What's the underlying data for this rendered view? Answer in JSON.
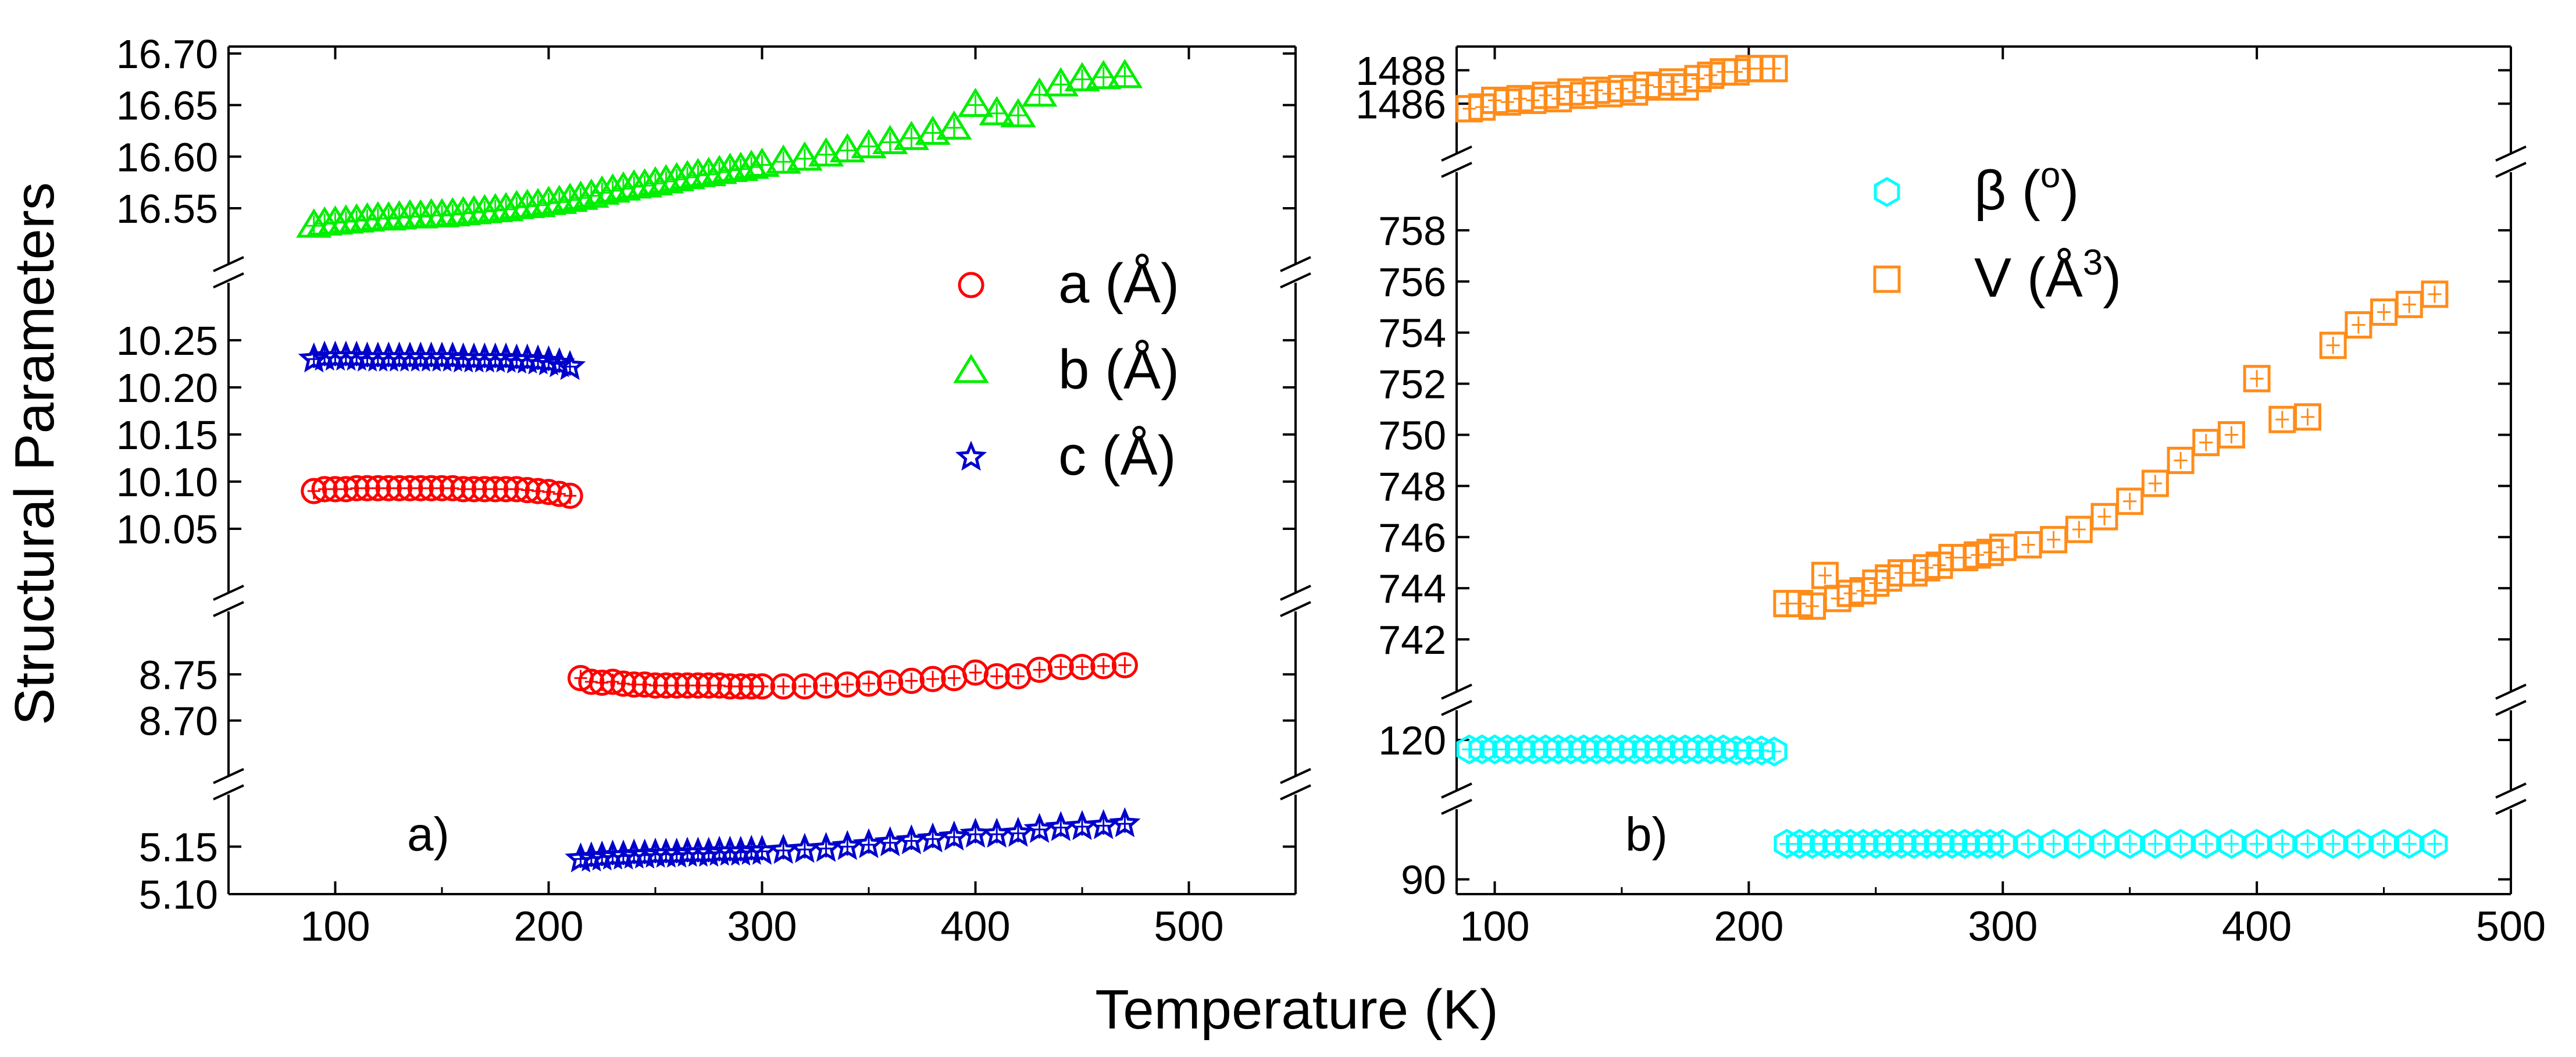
{
  "ylabel": "Structural Parameters",
  "xlabel": "Temperature (K)",
  "chart_data": [
    {
      "type": "scatter",
      "panel_label": "a)",
      "x_ticks": [
        "100",
        "200",
        "300",
        "400",
        "500"
      ],
      "xlim": [
        50,
        550
      ],
      "segments": [
        {
          "ylim": [
            16.515,
            16.7
          ],
          "ticks": [
            "16.55",
            "16.60",
            "16.65",
            "16.70"
          ]
        },
        {
          "ylim": [
            10.0,
            10.29
          ],
          "ticks": [
            "10.05",
            "10.10",
            "10.15",
            "10.20",
            "10.25"
          ]
        },
        {
          "ylim": [
            8.655,
            8.8
          ],
          "ticks": [
            "8.70",
            "8.75"
          ]
        },
        {
          "ylim": [
            5.1,
            5.19
          ],
          "ticks": [
            "5.10",
            "5.15"
          ]
        }
      ],
      "legend": {
        "position": "center-right",
        "entries": [
          "a (Å)",
          "b (Å)",
          "c (Å)"
        ]
      },
      "series": [
        {
          "name": "a (Å)",
          "marker": "circle",
          "color": "#ff0000",
          "segments": [
            1,
            2
          ],
          "x": [
            90,
            95,
            100,
            105,
            110,
            115,
            120,
            125,
            130,
            135,
            140,
            145,
            150,
            155,
            160,
            165,
            170,
            175,
            180,
            185,
            190,
            195,
            200,
            205,
            210,
            215,
            220,
            225,
            230,
            235,
            240,
            245,
            250,
            255,
            260,
            265,
            270,
            275,
            280,
            285,
            290,
            295,
            300,
            310,
            320,
            330,
            340,
            350,
            360,
            370,
            380,
            390,
            400,
            410,
            420,
            430,
            440,
            450,
            460,
            470
          ],
          "y": [
            10.09,
            10.092,
            10.092,
            10.092,
            10.093,
            10.093,
            10.093,
            10.093,
            10.093,
            10.093,
            10.093,
            10.093,
            10.093,
            10.093,
            10.092,
            10.092,
            10.092,
            10.092,
            10.092,
            10.092,
            10.091,
            10.09,
            10.089,
            10.087,
            10.085,
            8.746,
            8.742,
            8.741,
            8.742,
            8.74,
            8.739,
            8.739,
            8.738,
            8.738,
            8.738,
            8.738,
            8.738,
            8.738,
            8.738,
            8.737,
            8.737,
            8.737,
            8.737,
            8.737,
            8.737,
            8.738,
            8.739,
            8.74,
            8.741,
            8.743,
            8.745,
            8.746,
            8.752,
            8.748,
            8.748,
            8.755,
            8.758,
            8.758,
            8.759,
            8.76
          ]
        },
        {
          "name": "b (Å)",
          "marker": "triangle",
          "color": "#00ee00",
          "segments": [
            0
          ],
          "x": [
            90,
            95,
            100,
            105,
            110,
            115,
            120,
            125,
            130,
            135,
            140,
            145,
            150,
            155,
            160,
            165,
            170,
            175,
            180,
            185,
            190,
            195,
            200,
            205,
            210,
            215,
            220,
            225,
            230,
            235,
            240,
            245,
            250,
            255,
            260,
            265,
            270,
            275,
            280,
            285,
            290,
            295,
            300,
            310,
            320,
            330,
            340,
            350,
            360,
            370,
            380,
            390,
            400,
            410,
            420,
            430,
            440,
            450,
            460,
            470
          ],
          "y": [
            16.533,
            16.535,
            16.536,
            16.537,
            16.538,
            16.539,
            16.54,
            16.54,
            16.541,
            16.542,
            16.542,
            16.543,
            16.543,
            16.544,
            16.545,
            16.546,
            16.547,
            16.548,
            16.549,
            16.551,
            16.552,
            16.553,
            16.555,
            16.556,
            16.558,
            16.56,
            16.562,
            16.565,
            16.567,
            16.569,
            16.571,
            16.572,
            16.574,
            16.576,
            16.578,
            16.58,
            16.582,
            16.583,
            16.585,
            16.587,
            16.588,
            16.59,
            16.592,
            16.595,
            16.598,
            16.602,
            16.606,
            16.61,
            16.614,
            16.618,
            16.623,
            16.628,
            16.65,
            16.642,
            16.64,
            16.66,
            16.67,
            16.675,
            16.677,
            16.678
          ]
        },
        {
          "name": "c (Å)",
          "marker": "star",
          "color": "#0000cc",
          "segments": [
            1,
            3
          ],
          "x": [
            90,
            95,
            100,
            105,
            110,
            115,
            120,
            125,
            130,
            135,
            140,
            145,
            150,
            155,
            160,
            165,
            170,
            175,
            180,
            185,
            190,
            195,
            200,
            205,
            210,
            215,
            220,
            225,
            230,
            235,
            240,
            245,
            250,
            255,
            260,
            265,
            270,
            275,
            280,
            285,
            290,
            295,
            300,
            310,
            320,
            330,
            340,
            350,
            360,
            370,
            380,
            390,
            400,
            410,
            420,
            430,
            440,
            450,
            460,
            470
          ],
          "y": [
            10.23,
            10.232,
            10.232,
            10.232,
            10.232,
            10.231,
            10.231,
            10.231,
            10.231,
            10.231,
            10.231,
            10.231,
            10.231,
            10.231,
            10.23,
            10.23,
            10.23,
            10.23,
            10.23,
            10.229,
            10.229,
            10.228,
            10.227,
            10.225,
            10.222,
            5.137,
            5.138,
            5.139,
            5.14,
            5.14,
            5.141,
            5.141,
            5.142,
            5.142,
            5.142,
            5.143,
            5.143,
            5.143,
            5.144,
            5.144,
            5.144,
            5.145,
            5.145,
            5.146,
            5.147,
            5.148,
            5.15,
            5.152,
            5.154,
            5.156,
            5.158,
            5.16,
            5.163,
            5.163,
            5.164,
            5.168,
            5.17,
            5.171,
            5.172,
            5.174
          ]
        }
      ]
    },
    {
      "type": "scatter",
      "panel_label": "b)",
      "x_ticks": [
        "100",
        "200",
        "300",
        "400",
        "500"
      ],
      "xlim": [
        85,
        500
      ],
      "segments": [
        {
          "ylim": [
            1484.2,
            1489.0
          ],
          "ticks": [
            "1486",
            "1488"
          ]
        },
        {
          "ylim": [
            740.5,
            759.5
          ],
          "ticks": [
            "742",
            "744",
            "746",
            "748",
            "750",
            "752",
            "754",
            "756",
            "758"
          ]
        },
        {
          "ylim": [
            116.5,
            121.5
          ],
          "ticks": [
            "120"
          ]
        },
        {
          "ylim": [
            87.5,
            99.5
          ],
          "ticks": [
            "90"
          ]
        }
      ],
      "legend": {
        "position": "top-center",
        "entries": [
          "β (o)",
          "V (Å3)"
        ]
      },
      "series": [
        {
          "name": "β (o)",
          "marker": "hexagon",
          "color": "#00ffff",
          "segments": [
            2,
            3
          ],
          "x": [
            90,
            95,
            100,
            105,
            110,
            115,
            120,
            125,
            130,
            135,
            140,
            145,
            150,
            155,
            160,
            165,
            170,
            175,
            180,
            185,
            190,
            195,
            200,
            205,
            210,
            215,
            220,
            225,
            230,
            235,
            240,
            245,
            250,
            255,
            260,
            265,
            270,
            275,
            280,
            285,
            290,
            295,
            300,
            310,
            320,
            330,
            340,
            350,
            360,
            370,
            380,
            390,
            400,
            410,
            420,
            430,
            440,
            450,
            460,
            470
          ],
          "y": [
            119.1,
            119.1,
            119.1,
            119.1,
            119.1,
            119.1,
            119.1,
            119.1,
            119.1,
            119.1,
            119.1,
            119.1,
            119.1,
            119.1,
            119.1,
            119.1,
            119.1,
            119.1,
            119.1,
            119.1,
            119.1,
            119.0,
            119.0,
            119.0,
            118.9,
            96.0,
            96.0,
            96.0,
            96.0,
            96.0,
            96.0,
            96.0,
            96.0,
            96.0,
            96.0,
            96.0,
            96.0,
            96.0,
            96.0,
            96.0,
            96.0,
            96.0,
            96.0,
            96.0,
            96.0,
            96.0,
            96.0,
            96.0,
            96.0,
            96.0,
            96.0,
            96.0,
            96.0,
            96.0,
            96.0,
            96.0,
            96.0,
            96.0,
            96.0,
            96.0
          ]
        },
        {
          "name": "V (Å3)",
          "marker": "square",
          "color": "#ff8c1a",
          "segments": [
            0,
            1
          ],
          "x": [
            90,
            95,
            100,
            105,
            110,
            115,
            120,
            125,
            130,
            135,
            140,
            145,
            150,
            155,
            160,
            165,
            170,
            175,
            180,
            185,
            190,
            195,
            200,
            205,
            210,
            215,
            220,
            225,
            230,
            235,
            240,
            245,
            250,
            255,
            260,
            265,
            270,
            275,
            280,
            285,
            290,
            295,
            300,
            310,
            320,
            330,
            340,
            350,
            360,
            370,
            380,
            390,
            400,
            410,
            420,
            430,
            440,
            450,
            460,
            470
          ],
          "y": [
            1485.7,
            1485.8,
            1486.2,
            1486.1,
            1486.3,
            1486.2,
            1486.5,
            1486.3,
            1486.7,
            1486.5,
            1486.8,
            1486.6,
            1486.9,
            1486.7,
            1487.1,
            1487.0,
            1487.3,
            1487.0,
            1487.5,
            1487.7,
            1487.9,
            1487.9,
            1488.1,
            1488.1,
            1488.1,
            743.4,
            743.4,
            743.3,
            744.5,
            743.6,
            743.8,
            743.9,
            744.2,
            744.4,
            744.6,
            744.6,
            744.8,
            744.9,
            745.2,
            745.2,
            745.3,
            745.4,
            745.6,
            745.7,
            745.9,
            746.3,
            746.8,
            747.4,
            748.1,
            749.0,
            749.7,
            750.0,
            752.2,
            750.6,
            750.7,
            753.5,
            754.3,
            754.8,
            755.1,
            755.5
          ]
        }
      ]
    }
  ]
}
